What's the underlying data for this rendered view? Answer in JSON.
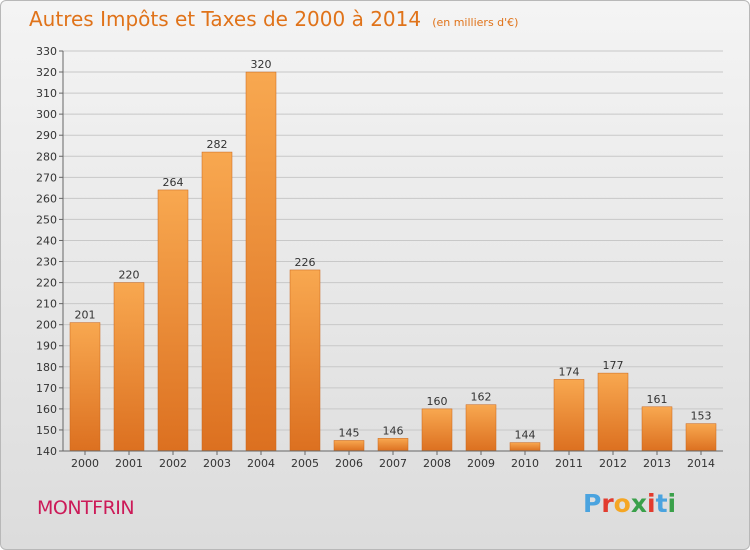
{
  "header": {
    "title": "Autres Impôts et Taxes de 2000 à 2014",
    "unit": "(en milliers d'€)"
  },
  "footer": {
    "city": "MONTFRIN",
    "logo_text": "Proxiti"
  },
  "colors": {
    "bar_top": "#f8a850",
    "bar_bottom": "#dc7020",
    "title": "#e0731a",
    "city": "#cc1a58",
    "logo": [
      "#4aa3df",
      "#e23b2e",
      "#f5a623",
      "#3aa04a",
      "#e23b2e",
      "#4aa3df",
      "#3aa04a"
    ]
  },
  "chart_data": {
    "type": "bar",
    "categories": [
      "2000",
      "2001",
      "2002",
      "2003",
      "2004",
      "2005",
      "2006",
      "2007",
      "2008",
      "2009",
      "2010",
      "2011",
      "2012",
      "2013",
      "2014"
    ],
    "values": [
      201,
      220,
      264,
      282,
      320,
      226,
      145,
      146,
      160,
      162,
      144,
      174,
      177,
      161,
      153
    ],
    "title": "Autres Impôts et Taxes de 2000 à 2014",
    "ylim": [
      140,
      330
    ],
    "ytick_step": 10,
    "grid": true
  }
}
